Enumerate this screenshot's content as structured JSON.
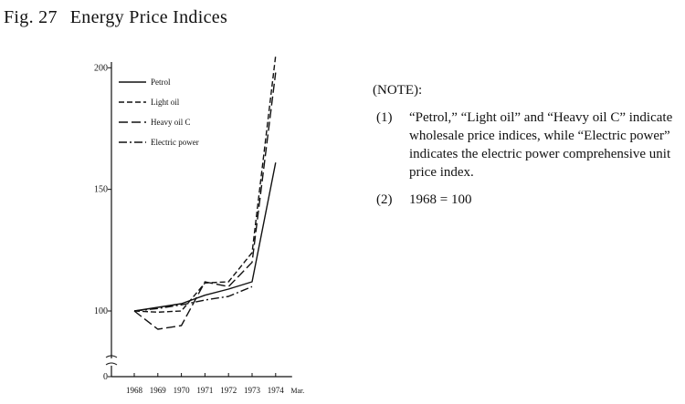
{
  "figure": {
    "number": "Fig. 27",
    "title": "Energy Price Indices"
  },
  "note": {
    "heading": "(NOTE):",
    "items": [
      {
        "mark": "(1)",
        "text": "“Petrol,” “Light oil” and “Heavy oil C” indicate wholesale price indices, while “Electric power” indicates the electric power comprehensive unit price index."
      },
      {
        "mark": "(2)",
        "text": "1968 = 100"
      }
    ]
  },
  "chart_data": {
    "type": "line",
    "title": "Energy Price Indices",
    "x": [
      "1968",
      "1969",
      "1970",
      "1971",
      "1972",
      "1973",
      "1974"
    ],
    "x_extra_label": "Mar.",
    "y_ticks": [
      0,
      100,
      150,
      200
    ],
    "y_tick_labels": [
      "0",
      "100",
      "150",
      "200"
    ],
    "ylim": [
      0,
      205
    ],
    "y_axis_break": [
      0,
      90
    ],
    "grid": false,
    "legend_position": "top-left",
    "series": [
      {
        "name": "Petrol",
        "dash": "solid",
        "values": [
          100,
          101.5,
          103,
          106.5,
          109,
          112,
          161
        ]
      },
      {
        "name": "Light oil",
        "dash": "dashed",
        "values": [
          100,
          99.5,
          100,
          111.5,
          112,
          124,
          205
        ]
      },
      {
        "name": "Heavy oil C",
        "dash": "longdash",
        "values": [
          100,
          92.5,
          94,
          112,
          110,
          120,
          198
        ]
      },
      {
        "name": "Electric power",
        "dash": "dashdot",
        "values": [
          100,
          101,
          102.5,
          104.5,
          106,
          110,
          null
        ]
      }
    ]
  }
}
